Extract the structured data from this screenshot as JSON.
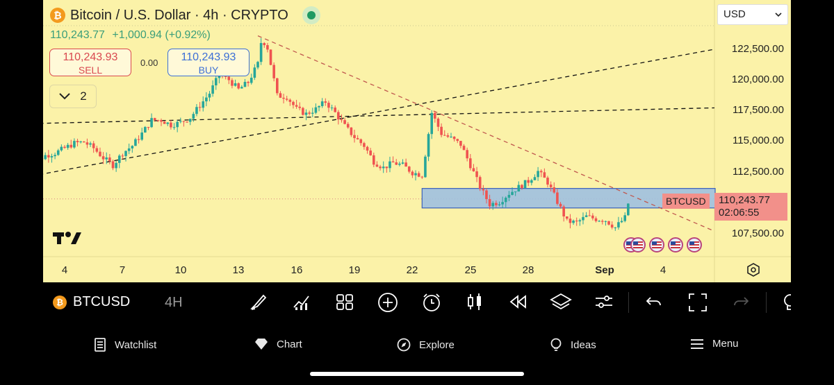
{
  "header": {
    "coin_badge": "₿",
    "title": "Bitcoin / U.S. Dollar · 4h · CRYPTO",
    "last_price": "110,243.77",
    "change": "+1,000.94 (+0.92%)"
  },
  "trade": {
    "sell_price": "110,243.93",
    "sell_label": "SELL",
    "spread": "0.00",
    "buy_price": "110,243.93",
    "buy_label": "BUY"
  },
  "indicators_count": "2",
  "currency": "USD",
  "price_axis": {
    "labels": [
      "122,500.00",
      "120,000.00",
      "117,500.00",
      "115,000.00",
      "112,500.00",
      "107,500.00"
    ]
  },
  "current_price": {
    "symbol": "BTCUSD",
    "price": "110,243.77",
    "countdown": "02:06:55",
    "tag_color": "#f2908a"
  },
  "date_axis": {
    "labels": [
      "4",
      "7",
      "10",
      "13",
      "16",
      "19",
      "22",
      "25",
      "28",
      "Sep",
      "4"
    ]
  },
  "chart_data": {
    "type": "candlestick",
    "symbol": "BTCUSD",
    "interval": "4h",
    "x_range": [
      "Aug 3",
      "Sep 5"
    ],
    "ylim": [
      106500,
      124500
    ],
    "y_ticks": [
      107500,
      112500,
      115000,
      117500,
      120000,
      122500
    ],
    "up_color": "#26a69a",
    "down_color": "#ef5350",
    "close_path": [
      [
        2.0,
        112300
      ],
      [
        2.5,
        113300
      ],
      [
        3.0,
        113800
      ],
      [
        3.5,
        114000
      ],
      [
        4.0,
        114400
      ],
      [
        4.5,
        114800
      ],
      [
        5.0,
        114900
      ],
      [
        5.5,
        114400
      ],
      [
        6.0,
        113600
      ],
      [
        6.5,
        113000
      ],
      [
        7.0,
        114000
      ],
      [
        7.5,
        114600
      ],
      [
        8.0,
        115600
      ],
      [
        8.5,
        116700
      ],
      [
        9.0,
        116700
      ],
      [
        9.5,
        116300
      ],
      [
        10.0,
        116500
      ],
      [
        10.5,
        116900
      ],
      [
        11.0,
        117900
      ],
      [
        11.5,
        118900
      ],
      [
        12.0,
        120400
      ],
      [
        12.5,
        120000
      ],
      [
        13.0,
        119200
      ],
      [
        13.5,
        119800
      ],
      [
        14.0,
        121300
      ],
      [
        14.2,
        123400
      ],
      [
        14.5,
        122600
      ],
      [
        15.0,
        118700
      ],
      [
        15.5,
        118600
      ],
      [
        16.0,
        117600
      ],
      [
        16.5,
        117200
      ],
      [
        17.0,
        117600
      ],
      [
        17.5,
        118200
      ],
      [
        18.0,
        117300
      ],
      [
        18.5,
        116200
      ],
      [
        19.0,
        115300
      ],
      [
        19.5,
        114600
      ],
      [
        20.0,
        113300
      ],
      [
        20.5,
        112800
      ],
      [
        21.0,
        113200
      ],
      [
        21.5,
        113000
      ],
      [
        22.0,
        112400
      ],
      [
        22.5,
        112200
      ],
      [
        23.0,
        117300
      ],
      [
        23.5,
        115600
      ],
      [
        24.0,
        115200
      ],
      [
        24.5,
        114700
      ],
      [
        25.0,
        113000
      ],
      [
        25.5,
        111200
      ],
      [
        26.0,
        109800
      ],
      [
        26.5,
        110000
      ],
      [
        27.0,
        110700
      ],
      [
        27.5,
        111200
      ],
      [
        28.0,
        111700
      ],
      [
        28.5,
        112500
      ],
      [
        29.0,
        111600
      ],
      [
        29.5,
        110000
      ],
      [
        30.0,
        108400
      ],
      [
        30.5,
        108300
      ],
      [
        31.0,
        108800
      ],
      [
        31.5,
        108600
      ],
      [
        32.0,
        108500
      ],
      [
        32.5,
        107900
      ],
      [
        33.0,
        108700
      ],
      [
        33.2,
        110100
      ]
    ],
    "trendlines": [
      {
        "style": "dashed",
        "color": "#111111",
        "from": [
          1.9,
          112000
        ],
        "to": [
          39.0,
          122500
        ]
      },
      {
        "style": "dashed",
        "color": "#111111",
        "from": [
          1.9,
          116400
        ],
        "to": [
          39.0,
          117700
        ]
      },
      {
        "style": "dashed",
        "color": "#c0584f",
        "from": [
          14.0,
          123600
        ],
        "to": [
          38.0,
          107600
        ]
      }
    ],
    "zone": {
      "from_x": 22.5,
      "to_x": 39.0,
      "y_low": 109500,
      "y_high": 111100,
      "color": "#9ec0e0"
    },
    "current_price_line": 110243.77,
    "event_markers": 5
  },
  "toolbar": {
    "symbol": "BTCUSD",
    "interval": "4H"
  },
  "nav": {
    "watchlist": "Watchlist",
    "chart": "Chart",
    "explore": "Explore",
    "ideas": "Ideas",
    "menu": "Menu"
  }
}
